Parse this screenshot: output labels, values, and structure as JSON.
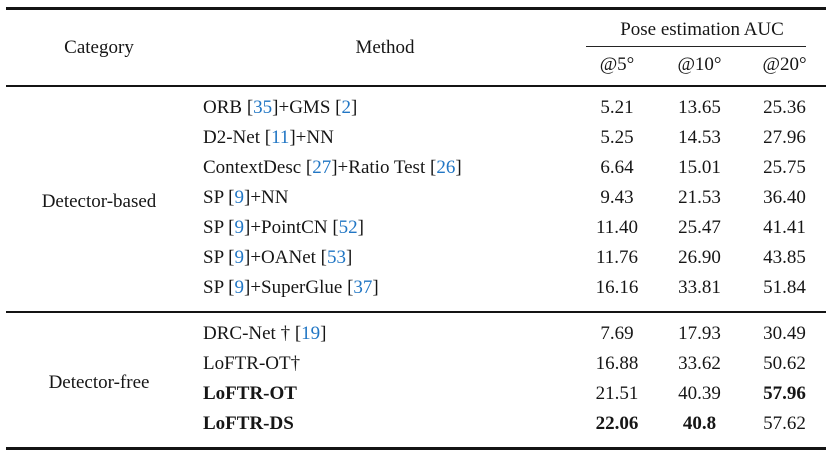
{
  "colors": {
    "text": "#161616",
    "citation_blue": "#2176c4",
    "rule_black": "#141414",
    "background": "#ffffff"
  },
  "table": {
    "header": {
      "category": "Category",
      "method": "Method",
      "auc_group": "Pose estimation AUC",
      "auc_cols": [
        "@5°",
        "@10°",
        "@20°"
      ]
    },
    "groups": [
      {
        "category": "Detector-based",
        "rows": [
          {
            "method": [
              {
                "t": "ORB ["
              },
              {
                "t": "35",
                "cite": true
              },
              {
                "t": "]+GMS ["
              },
              {
                "t": "2",
                "cite": true
              },
              {
                "t": "]"
              }
            ],
            "values": [
              "5.21",
              "13.65",
              "25.36"
            ],
            "bold_method": false,
            "bold_values": [
              false,
              false,
              false
            ]
          },
          {
            "method": [
              {
                "t": "D2-Net ["
              },
              {
                "t": "11",
                "cite": true
              },
              {
                "t": "]+NN"
              }
            ],
            "values": [
              "5.25",
              "14.53",
              "27.96"
            ],
            "bold_method": false,
            "bold_values": [
              false,
              false,
              false
            ]
          },
          {
            "method": [
              {
                "t": "ContextDesc ["
              },
              {
                "t": "27",
                "cite": true
              },
              {
                "t": "]+Ratio Test ["
              },
              {
                "t": "26",
                "cite": true
              },
              {
                "t": "]"
              }
            ],
            "values": [
              "6.64",
              "15.01",
              "25.75"
            ],
            "bold_method": false,
            "bold_values": [
              false,
              false,
              false
            ]
          },
          {
            "method": [
              {
                "t": "SP ["
              },
              {
                "t": "9",
                "cite": true
              },
              {
                "t": "]+NN"
              }
            ],
            "values": [
              "9.43",
              "21.53",
              "36.40"
            ],
            "bold_method": false,
            "bold_values": [
              false,
              false,
              false
            ]
          },
          {
            "method": [
              {
                "t": "SP ["
              },
              {
                "t": "9",
                "cite": true
              },
              {
                "t": "]+PointCN ["
              },
              {
                "t": "52",
                "cite": true
              },
              {
                "t": "]"
              }
            ],
            "values": [
              "11.40",
              "25.47",
              "41.41"
            ],
            "bold_method": false,
            "bold_values": [
              false,
              false,
              false
            ]
          },
          {
            "method": [
              {
                "t": "SP ["
              },
              {
                "t": "9",
                "cite": true
              },
              {
                "t": "]+OANet ["
              },
              {
                "t": "53",
                "cite": true
              },
              {
                "t": "]"
              }
            ],
            "values": [
              "11.76",
              "26.90",
              "43.85"
            ],
            "bold_method": false,
            "bold_values": [
              false,
              false,
              false
            ]
          },
          {
            "method": [
              {
                "t": "SP ["
              },
              {
                "t": "9",
                "cite": true
              },
              {
                "t": "]+SuperGlue ["
              },
              {
                "t": "37",
                "cite": true
              },
              {
                "t": "]"
              }
            ],
            "values": [
              "16.16",
              "33.81",
              "51.84"
            ],
            "bold_method": false,
            "bold_values": [
              false,
              false,
              false
            ]
          }
        ]
      },
      {
        "category": "Detector-free",
        "rows": [
          {
            "method": [
              {
                "t": "DRC-Net † ["
              },
              {
                "t": "19",
                "cite": true
              },
              {
                "t": "]"
              }
            ],
            "values": [
              "7.69",
              "17.93",
              "30.49"
            ],
            "bold_method": false,
            "bold_values": [
              false,
              false,
              false
            ]
          },
          {
            "method": [
              {
                "t": "LoFTR-OT†"
              }
            ],
            "values": [
              "16.88",
              "33.62",
              "50.62"
            ],
            "bold_method": false,
            "bold_values": [
              false,
              false,
              false
            ]
          },
          {
            "method": [
              {
                "t": "LoFTR-OT"
              }
            ],
            "values": [
              "21.51",
              "40.39",
              "57.96"
            ],
            "bold_method": true,
            "bold_values": [
              false,
              false,
              true
            ]
          },
          {
            "method": [
              {
                "t": "LoFTR-DS"
              }
            ],
            "values": [
              "22.06",
              "40.8",
              "57.62"
            ],
            "bold_method": true,
            "bold_values": [
              true,
              true,
              false
            ]
          }
        ]
      }
    ]
  }
}
